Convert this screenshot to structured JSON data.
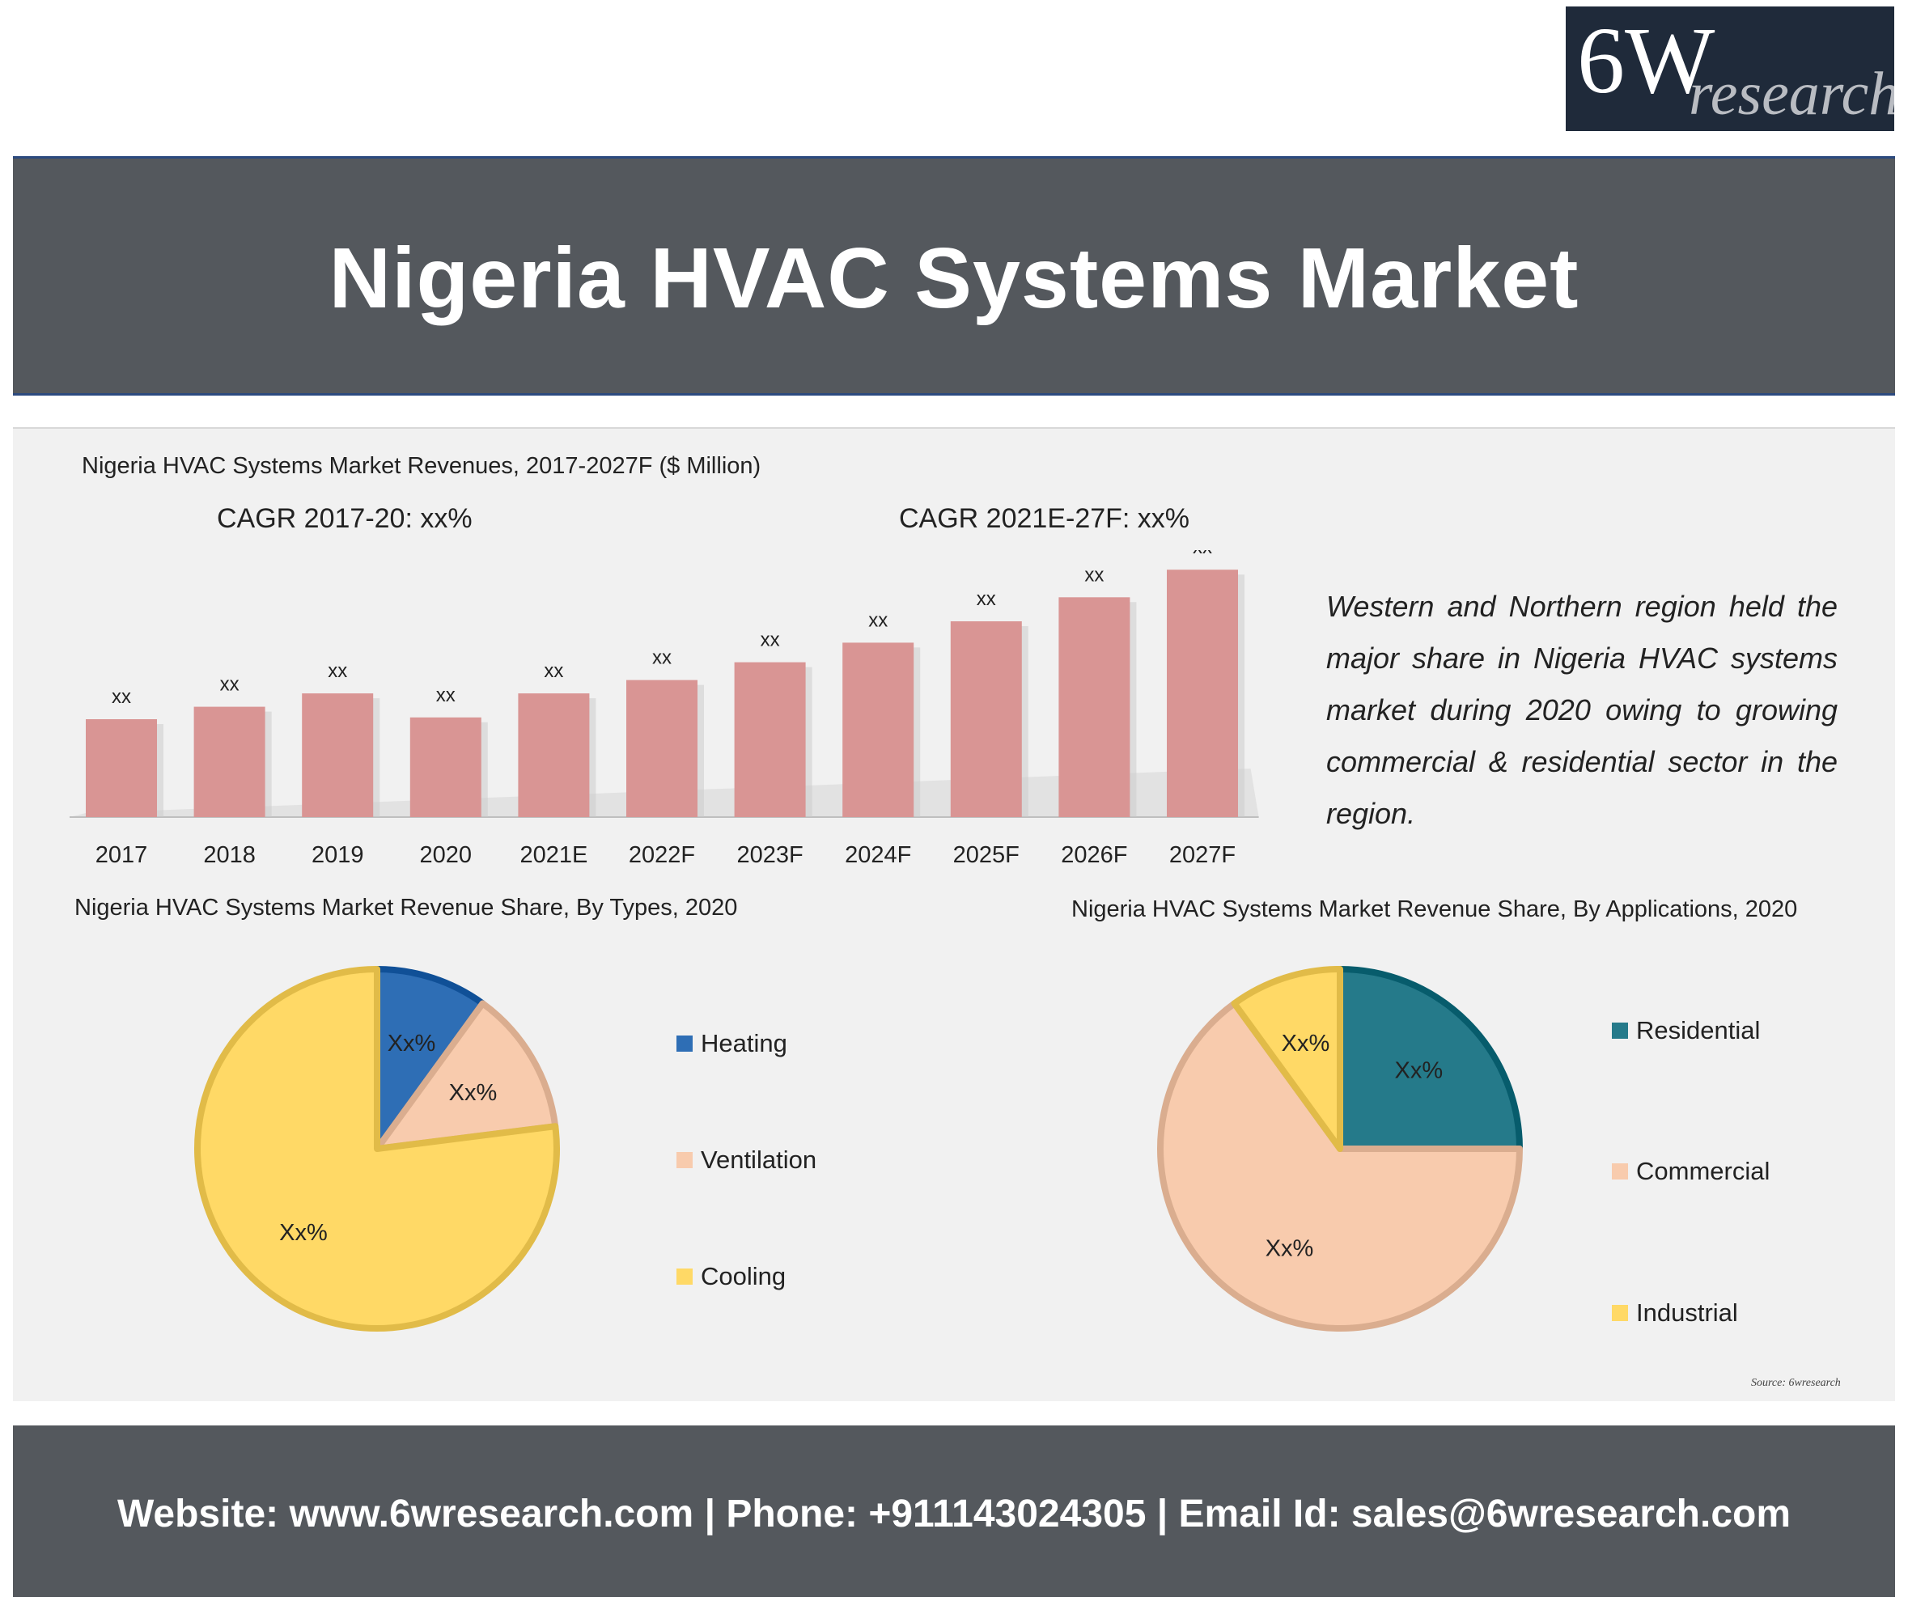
{
  "logo": {
    "main": "6W",
    "sub": "research"
  },
  "banner": {
    "title": "Nigeria HVAC Systems Market"
  },
  "colors": {
    "bar": "#d99594",
    "heating": "#2e6eb5",
    "ventilation": "#f8cbad",
    "cooling": "#ffd966",
    "residential": "#257a8a",
    "commercial": "#f8cbad",
    "industrial": "#ffd966"
  },
  "chart_data": [
    {
      "type": "bar",
      "title": "Nigeria HVAC Systems Market Revenues, 2017-2027F ($ Million)",
      "categories": [
        "2017",
        "2018",
        "2019",
        "2020",
        "2021E",
        "2022F",
        "2023F",
        "2024F",
        "2025F",
        "2026F",
        "2027F"
      ],
      "values": [
        11,
        12.4,
        13.9,
        11.2,
        13.9,
        15.4,
        17.4,
        19.6,
        22,
        24.7,
        27.8
      ],
      "data_labels": [
        "xx",
        "xx",
        "xx",
        "xx",
        "xx",
        "xx",
        "xx",
        "xx",
        "xx",
        "xx",
        "xx"
      ],
      "annotations": [
        "CAGR 2017-20: xx%",
        "CAGR 2021E-27F: xx%"
      ],
      "xlabel": "",
      "ylabel": "",
      "ylim": [
        0,
        30
      ],
      "grid": false,
      "legend": "none"
    },
    {
      "type": "pie",
      "title": "Nigeria HVAC Systems Market Revenue Share, By Types, 2020",
      "categories": [
        "Heating",
        "Ventilation",
        "Cooling"
      ],
      "values": [
        10,
        13,
        77
      ],
      "data_labels": [
        "Xx%",
        "Xx%",
        "Xx%"
      ],
      "legend": "right"
    },
    {
      "type": "pie",
      "title": "Nigeria HVAC Systems Market Revenue Share, By Applications, 2020",
      "categories": [
        "Residential",
        "Commercial",
        "Industrial"
      ],
      "values": [
        25,
        65,
        10
      ],
      "data_labels": [
        "Xx%",
        "Xx%",
        "Xx%"
      ],
      "legend": "right"
    }
  ],
  "note": "Western and Northern region held the major share in Nigeria HVAC systems market during 2020 owing to growing commercial & residential sector in the region.",
  "source": "Source: 6wresearch",
  "footer": "Website: www.6wresearch.com | Phone: +911143024305 | Email Id: sales@6wresearch.com"
}
